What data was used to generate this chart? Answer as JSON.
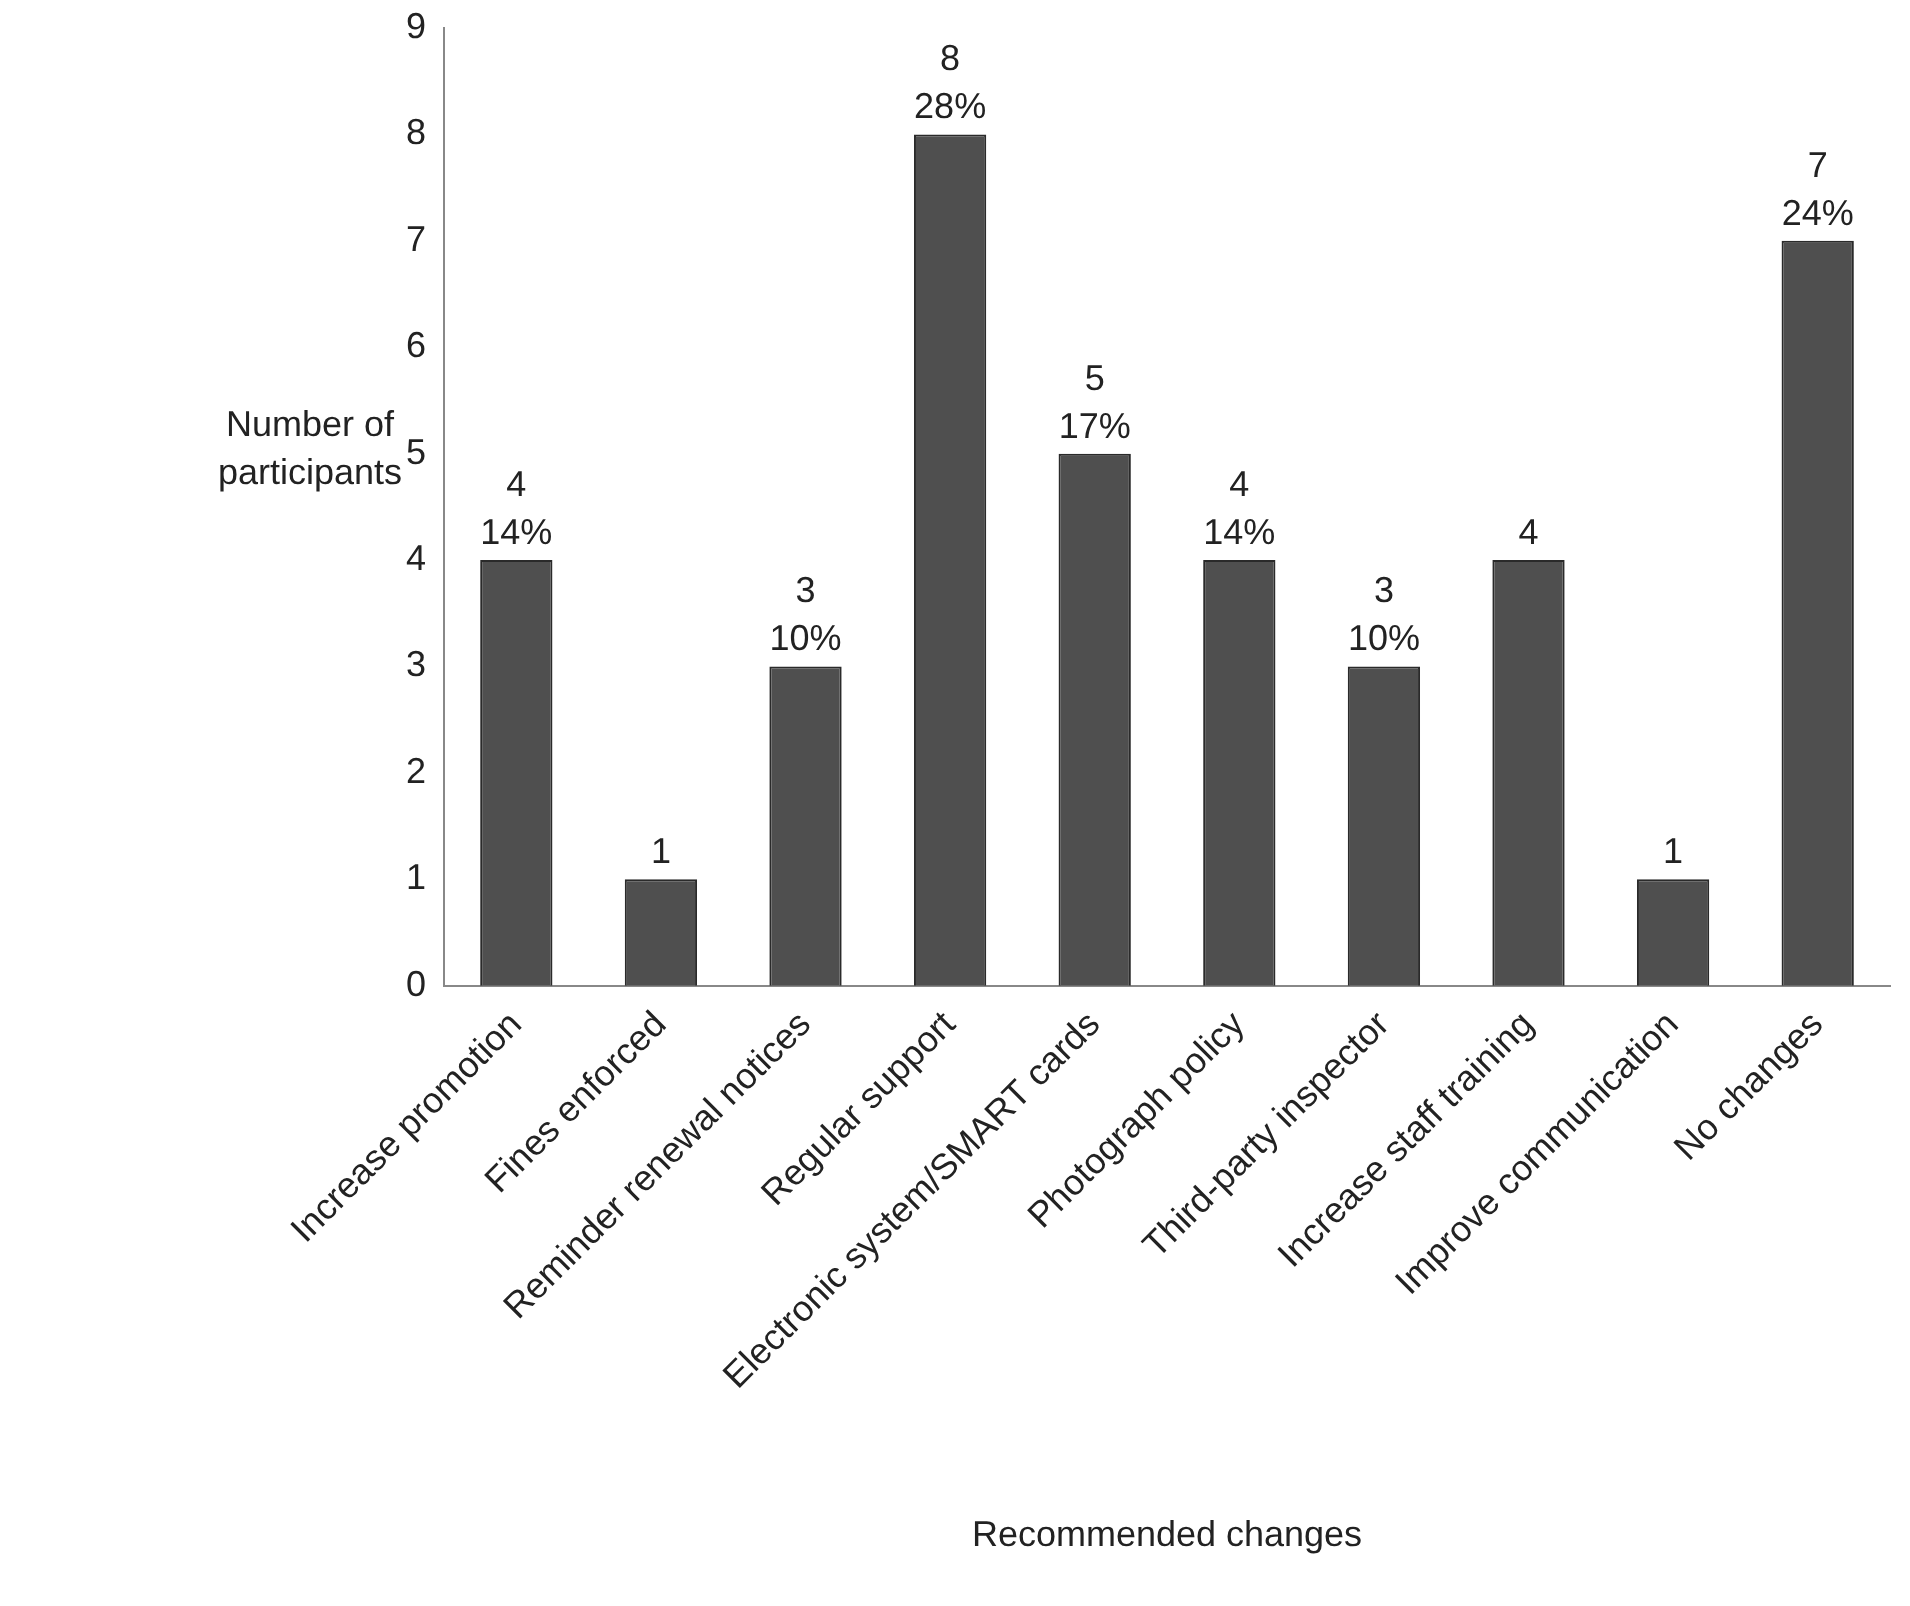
{
  "chart_data": {
    "type": "bar",
    "xlabel": "Recommended changes",
    "ylabel": "Number of participants",
    "categories": [
      "Increase promotion",
      "Fines enforced",
      "Reminder renewal notices",
      "Regular support",
      "Electronic system/SMART cards",
      "Photograph policy",
      "Third-party inspector",
      "Increase staff training",
      "Improve communication",
      "No changes"
    ],
    "values": [
      4,
      1,
      3,
      8,
      5,
      4,
      3,
      4,
      1,
      7
    ],
    "value_labels": [
      "4\n14%",
      "1",
      "3\n10%",
      "8\n28%",
      "5\n17%",
      "4\n14%",
      "3\n10%",
      "4",
      "1",
      "7\n24%"
    ],
    "color": "#4f4f4f",
    "ylim": [
      0,
      9
    ],
    "yticks": [
      0,
      1,
      2,
      3,
      4,
      5,
      6,
      7,
      8,
      9
    ],
    "grid": false,
    "legend": false
  }
}
